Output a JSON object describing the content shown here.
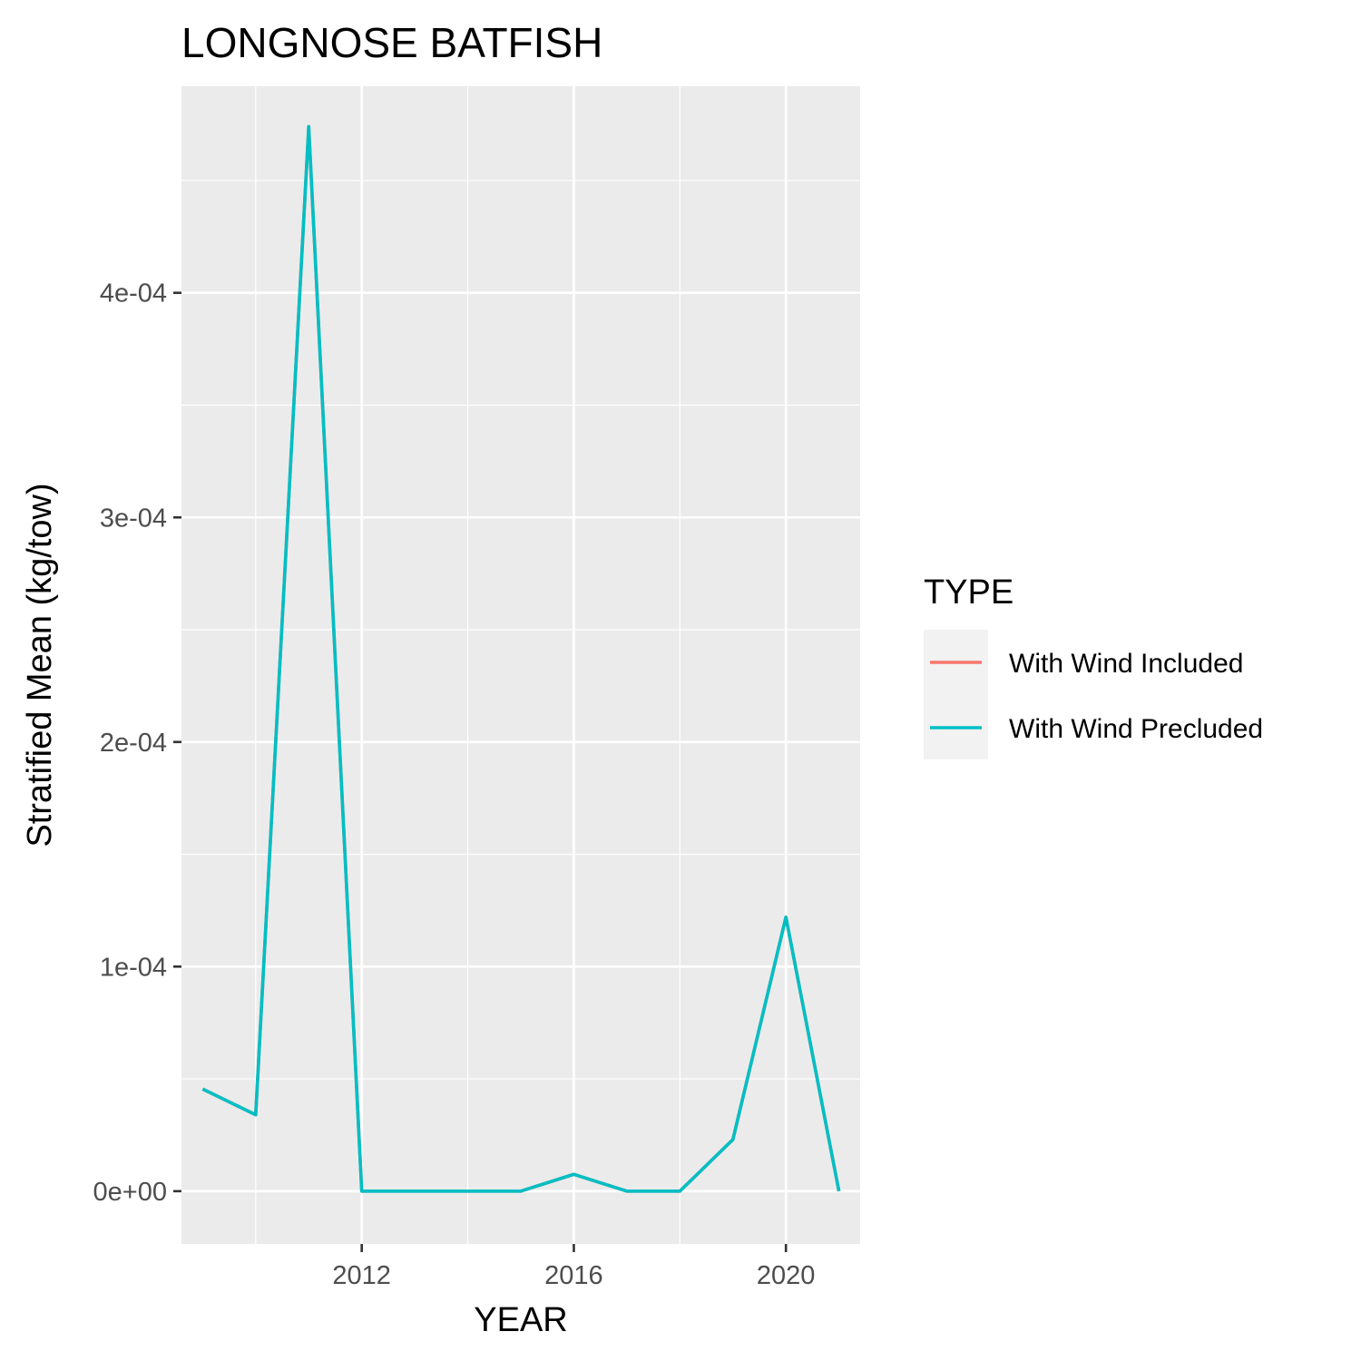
{
  "chart_data": {
    "type": "line",
    "title": "LONGNOSE BATFISH",
    "xlabel": "YEAR",
    "ylabel": "Stratified Mean (kg/tow)",
    "xlim": [
      2008.6,
      2021.4
    ],
    "ylim": [
      -2.35e-05,
      0.000492
    ],
    "x_ticks": [
      2012,
      2016,
      2020
    ],
    "x_tick_labels": [
      "2012",
      "2016",
      "2020"
    ],
    "y_ticks": [
      0,
      0.0001,
      0.0002,
      0.0003,
      0.0004
    ],
    "y_tick_labels": [
      "0e+00",
      "1e-04",
      "2e-04",
      "3e-04",
      "4e-04"
    ],
    "grid": true,
    "legend_title": "TYPE",
    "legend_position": "right",
    "x": [
      2009,
      2010,
      2011,
      2012,
      2013,
      2014,
      2015,
      2016,
      2017,
      2018,
      2019,
      2020,
      2021
    ],
    "series": [
      {
        "name": "With Wind Included",
        "color": "#F8766D",
        "values": [
          4.55e-05,
          3.4e-05,
          0.000474,
          0,
          0,
          0,
          0,
          7.5e-06,
          0,
          0,
          2.3e-05,
          0.000122,
          0
        ]
      },
      {
        "name": "With Wind Precluded",
        "color": "#00BFC4",
        "values": [
          4.55e-05,
          3.4e-05,
          0.000474,
          0,
          0,
          0,
          0,
          7.5e-06,
          0,
          0,
          2.3e-05,
          0.000122,
          0
        ]
      }
    ]
  }
}
